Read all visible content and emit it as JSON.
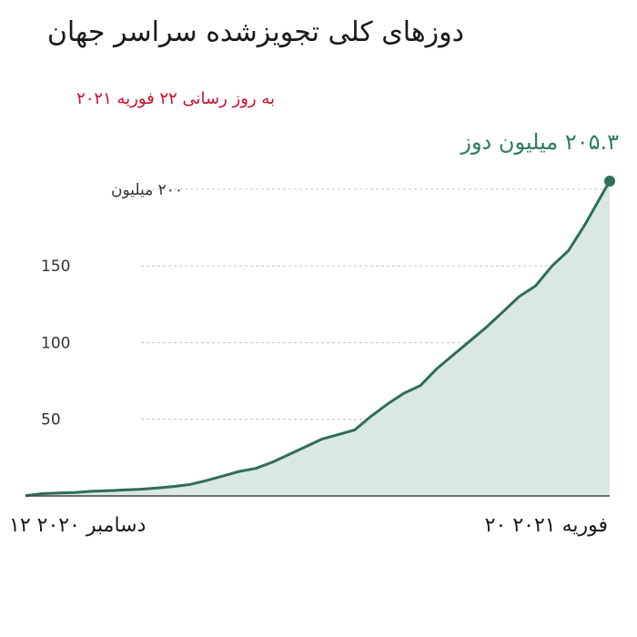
{
  "title": "دوزهای کلی تجویزشده سراسر جهان",
  "subtitle": "به روز رسانی ۲۲ فوریه ۲۰۲۱",
  "final_label": "۲۰۵.۳ میلیون دوز",
  "colors": {
    "line": "#2e6e56",
    "fill": "#d9e9e1",
    "title": "#1a1a1a",
    "subtitle": "#c8102e",
    "final_label": "#2e7d5b",
    "grid": "#cccccc"
  },
  "chart_data": {
    "type": "area",
    "title": "دوزهای کلی تجویزشده سراسر جهان",
    "ylim": [
      0,
      205.3
    ],
    "grid": true,
    "y_ticks": [
      {
        "value": 50,
        "label": "50"
      },
      {
        "value": 100,
        "label": "100"
      },
      {
        "value": 150,
        "label": "150"
      },
      {
        "value": 200,
        "label": "۲۰۰ میلیون"
      }
    ],
    "x_ticks": [
      {
        "value": "2020-12-12",
        "label": "۱۲ دسامبر ۲۰۲۰"
      },
      {
        "value": "2021-02-20",
        "label": "۲۰ فوریه ۲۰۲۱"
      }
    ],
    "x": [
      "2020-12-12",
      "2020-12-14",
      "2020-12-16",
      "2020-12-18",
      "2020-12-20",
      "2020-12-22",
      "2020-12-24",
      "2020-12-26",
      "2020-12-28",
      "2020-12-30",
      "2021-01-01",
      "2021-01-03",
      "2021-01-05",
      "2021-01-07",
      "2021-01-09",
      "2021-01-11",
      "2021-01-13",
      "2021-01-15",
      "2021-01-17",
      "2021-01-19",
      "2021-01-21",
      "2021-01-23",
      "2021-01-25",
      "2021-01-27",
      "2021-01-29",
      "2021-01-31",
      "2021-02-02",
      "2021-02-04",
      "2021-02-06",
      "2021-02-08",
      "2021-02-10",
      "2021-02-12",
      "2021-02-14",
      "2021-02-16",
      "2021-02-18",
      "2021-02-20",
      "2021-02-21"
    ],
    "values": [
      0.1,
      1.5,
      1.9,
      2.2,
      3.0,
      3.4,
      3.9,
      4.4,
      5.2,
      6.2,
      7.5,
      10.0,
      13.0,
      16.0,
      18.0,
      22.0,
      27.0,
      32.0,
      37.0,
      40.0,
      43.0,
      52.0,
      60.0,
      67.0,
      72.0,
      83.0,
      92.0,
      101.0,
      110.0,
      120.0,
      130.0,
      137.0,
      150.0,
      160.0,
      177.0,
      196.0,
      205.3
    ],
    "annotation": {
      "x": "2021-02-21",
      "value": 205.3,
      "label": "۲۰۵.۳ میلیون دوز"
    }
  }
}
